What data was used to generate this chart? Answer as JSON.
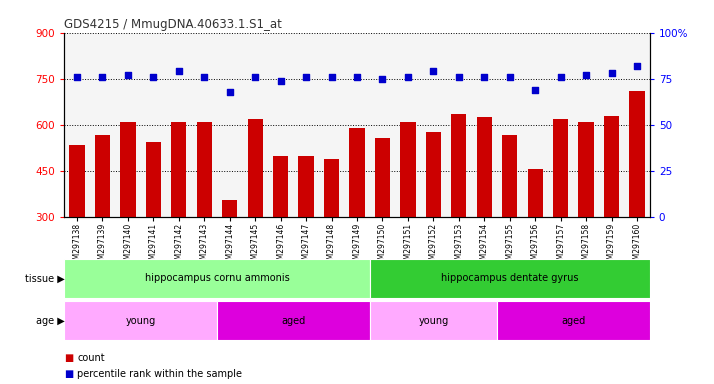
{
  "title": "GDS4215 / MmugDNA.40633.1.S1_at",
  "samples": [
    "GSM297138",
    "GSM297139",
    "GSM297140",
    "GSM297141",
    "GSM297142",
    "GSM297143",
    "GSM297144",
    "GSM297145",
    "GSM297146",
    "GSM297147",
    "GSM297148",
    "GSM297149",
    "GSM297150",
    "GSM297151",
    "GSM297152",
    "GSM297153",
    "GSM297154",
    "GSM297155",
    "GSM297156",
    "GSM297157",
    "GSM297158",
    "GSM297159",
    "GSM297160"
  ],
  "counts": [
    535,
    567,
    608,
    543,
    608,
    608,
    355,
    620,
    500,
    500,
    490,
    588,
    558,
    608,
    575,
    635,
    625,
    568,
    455,
    618,
    608,
    630,
    710
  ],
  "percentile": [
    76,
    76,
    77,
    76,
    79,
    76,
    68,
    76,
    74,
    76,
    76,
    76,
    75,
    76,
    79,
    76,
    76,
    76,
    69,
    76,
    77,
    78,
    82
  ],
  "ylim_left": [
    300,
    900
  ],
  "ylim_right": [
    0,
    100
  ],
  "yticks_left": [
    300,
    450,
    600,
    750,
    900
  ],
  "yticks_right": [
    0,
    25,
    50,
    75,
    100
  ],
  "bar_color": "#cc0000",
  "dot_color": "#0000cc",
  "bg_color": "#ffffff",
  "title_color": "#333333",
  "tissue_groups": [
    {
      "label": "hippocampus cornu ammonis",
      "start": 0,
      "end": 12,
      "color": "#99ff99"
    },
    {
      "label": "hippocampus dentate gyrus",
      "start": 12,
      "end": 23,
      "color": "#33cc33"
    }
  ],
  "age_groups": [
    {
      "label": "young",
      "start": 0,
      "end": 6,
      "color": "#ffaaff"
    },
    {
      "label": "aged",
      "start": 6,
      "end": 12,
      "color": "#dd00dd"
    },
    {
      "label": "young",
      "start": 12,
      "end": 17,
      "color": "#ffaaff"
    },
    {
      "label": "aged",
      "start": 17,
      "end": 23,
      "color": "#dd00dd"
    }
  ],
  "legend_count_color": "#cc0000",
  "legend_dot_color": "#0000cc",
  "legend_count_label": "count",
  "legend_dot_label": "percentile rank within the sample"
}
